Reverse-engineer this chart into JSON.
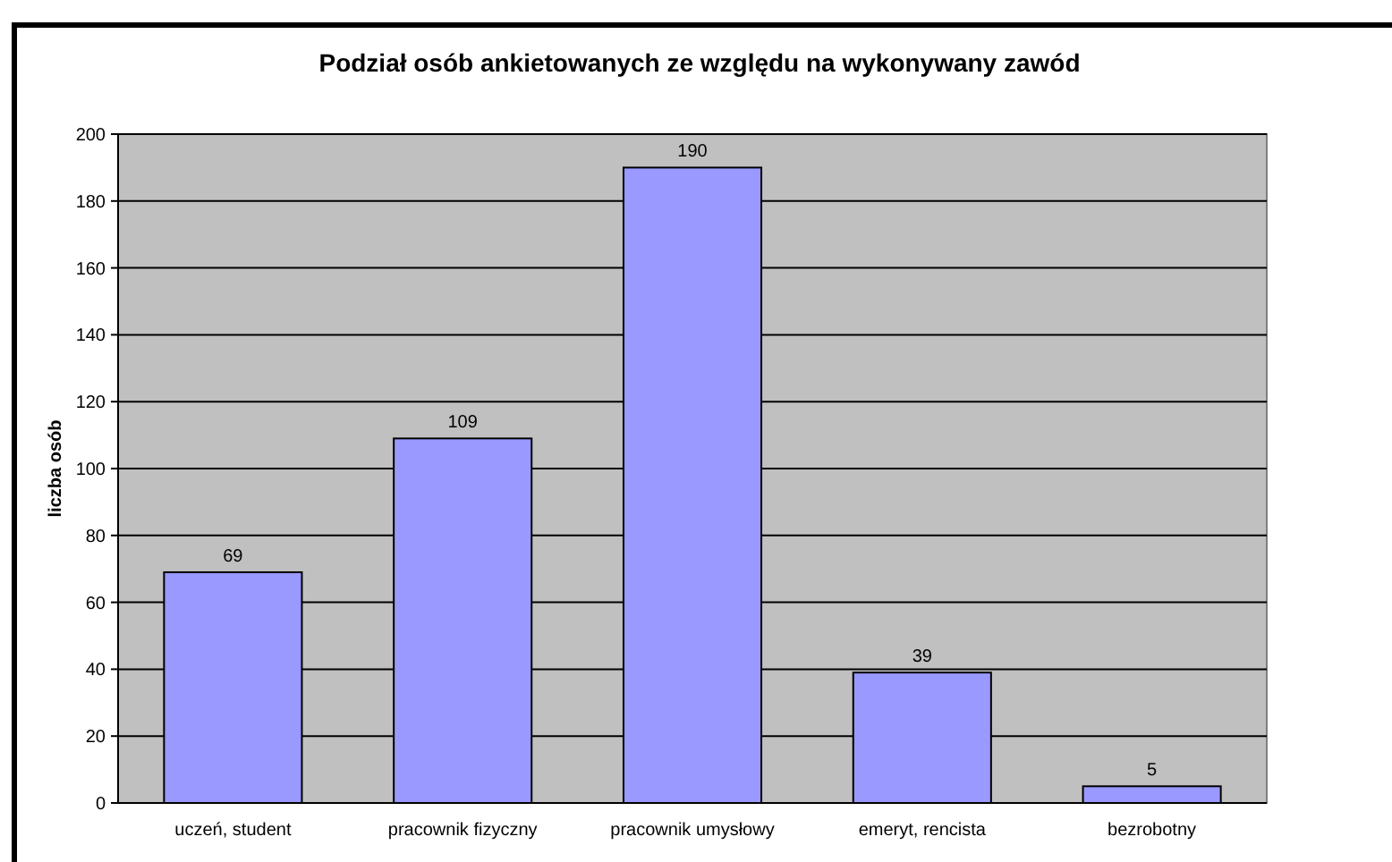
{
  "chart_data": {
    "type": "bar",
    "title": "Podział osób ankietowanych ze względu na wykonywany zawód",
    "ylabel": "liczba osób",
    "categories": [
      "uczeń, student",
      "pracownik fizyczny",
      "pracownik umysłowy",
      "emeryt, rencista",
      "bezrobotny"
    ],
    "values": [
      69,
      109,
      190,
      39,
      5
    ],
    "color": "#9999ff",
    "ylim": [
      0,
      200
    ],
    "yticks": [
      0,
      20,
      40,
      60,
      80,
      100,
      120,
      140,
      160,
      180,
      200
    ],
    "grid": "y",
    "data_labels": true
  }
}
